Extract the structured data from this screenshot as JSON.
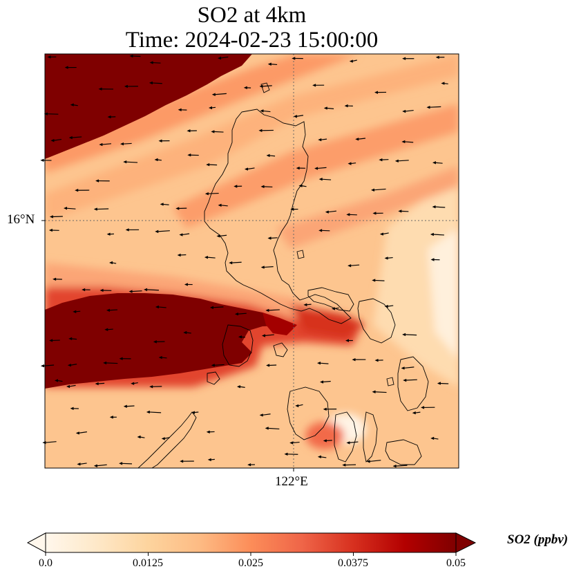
{
  "title": {
    "line1": "SO2 at 4km",
    "line2": "Time: 2024-02-23 15:00:00"
  },
  "axes": {
    "lat_label": "16°N",
    "lon_label": "122°E"
  },
  "colorbar": {
    "label": "SO2 (ppbv)",
    "colormap": "OrRd",
    "stops": [
      "#fff7ec",
      "#fee8c8",
      "#fdd49e",
      "#fdbb84",
      "#fc8d59",
      "#ef6548",
      "#d7301f",
      "#b30000",
      "#7f0000"
    ],
    "ticks": [
      "0.0",
      "0.0125",
      "0.025",
      "0.0375",
      "0.05"
    ],
    "range": [
      0.0,
      0.05
    ],
    "extend": "both"
  },
  "map": {
    "field": "SO2",
    "level": "4km",
    "overlays": [
      "coastlines",
      "wind-vectors",
      "gridlines"
    ],
    "gridline_style": "dotted"
  }
}
